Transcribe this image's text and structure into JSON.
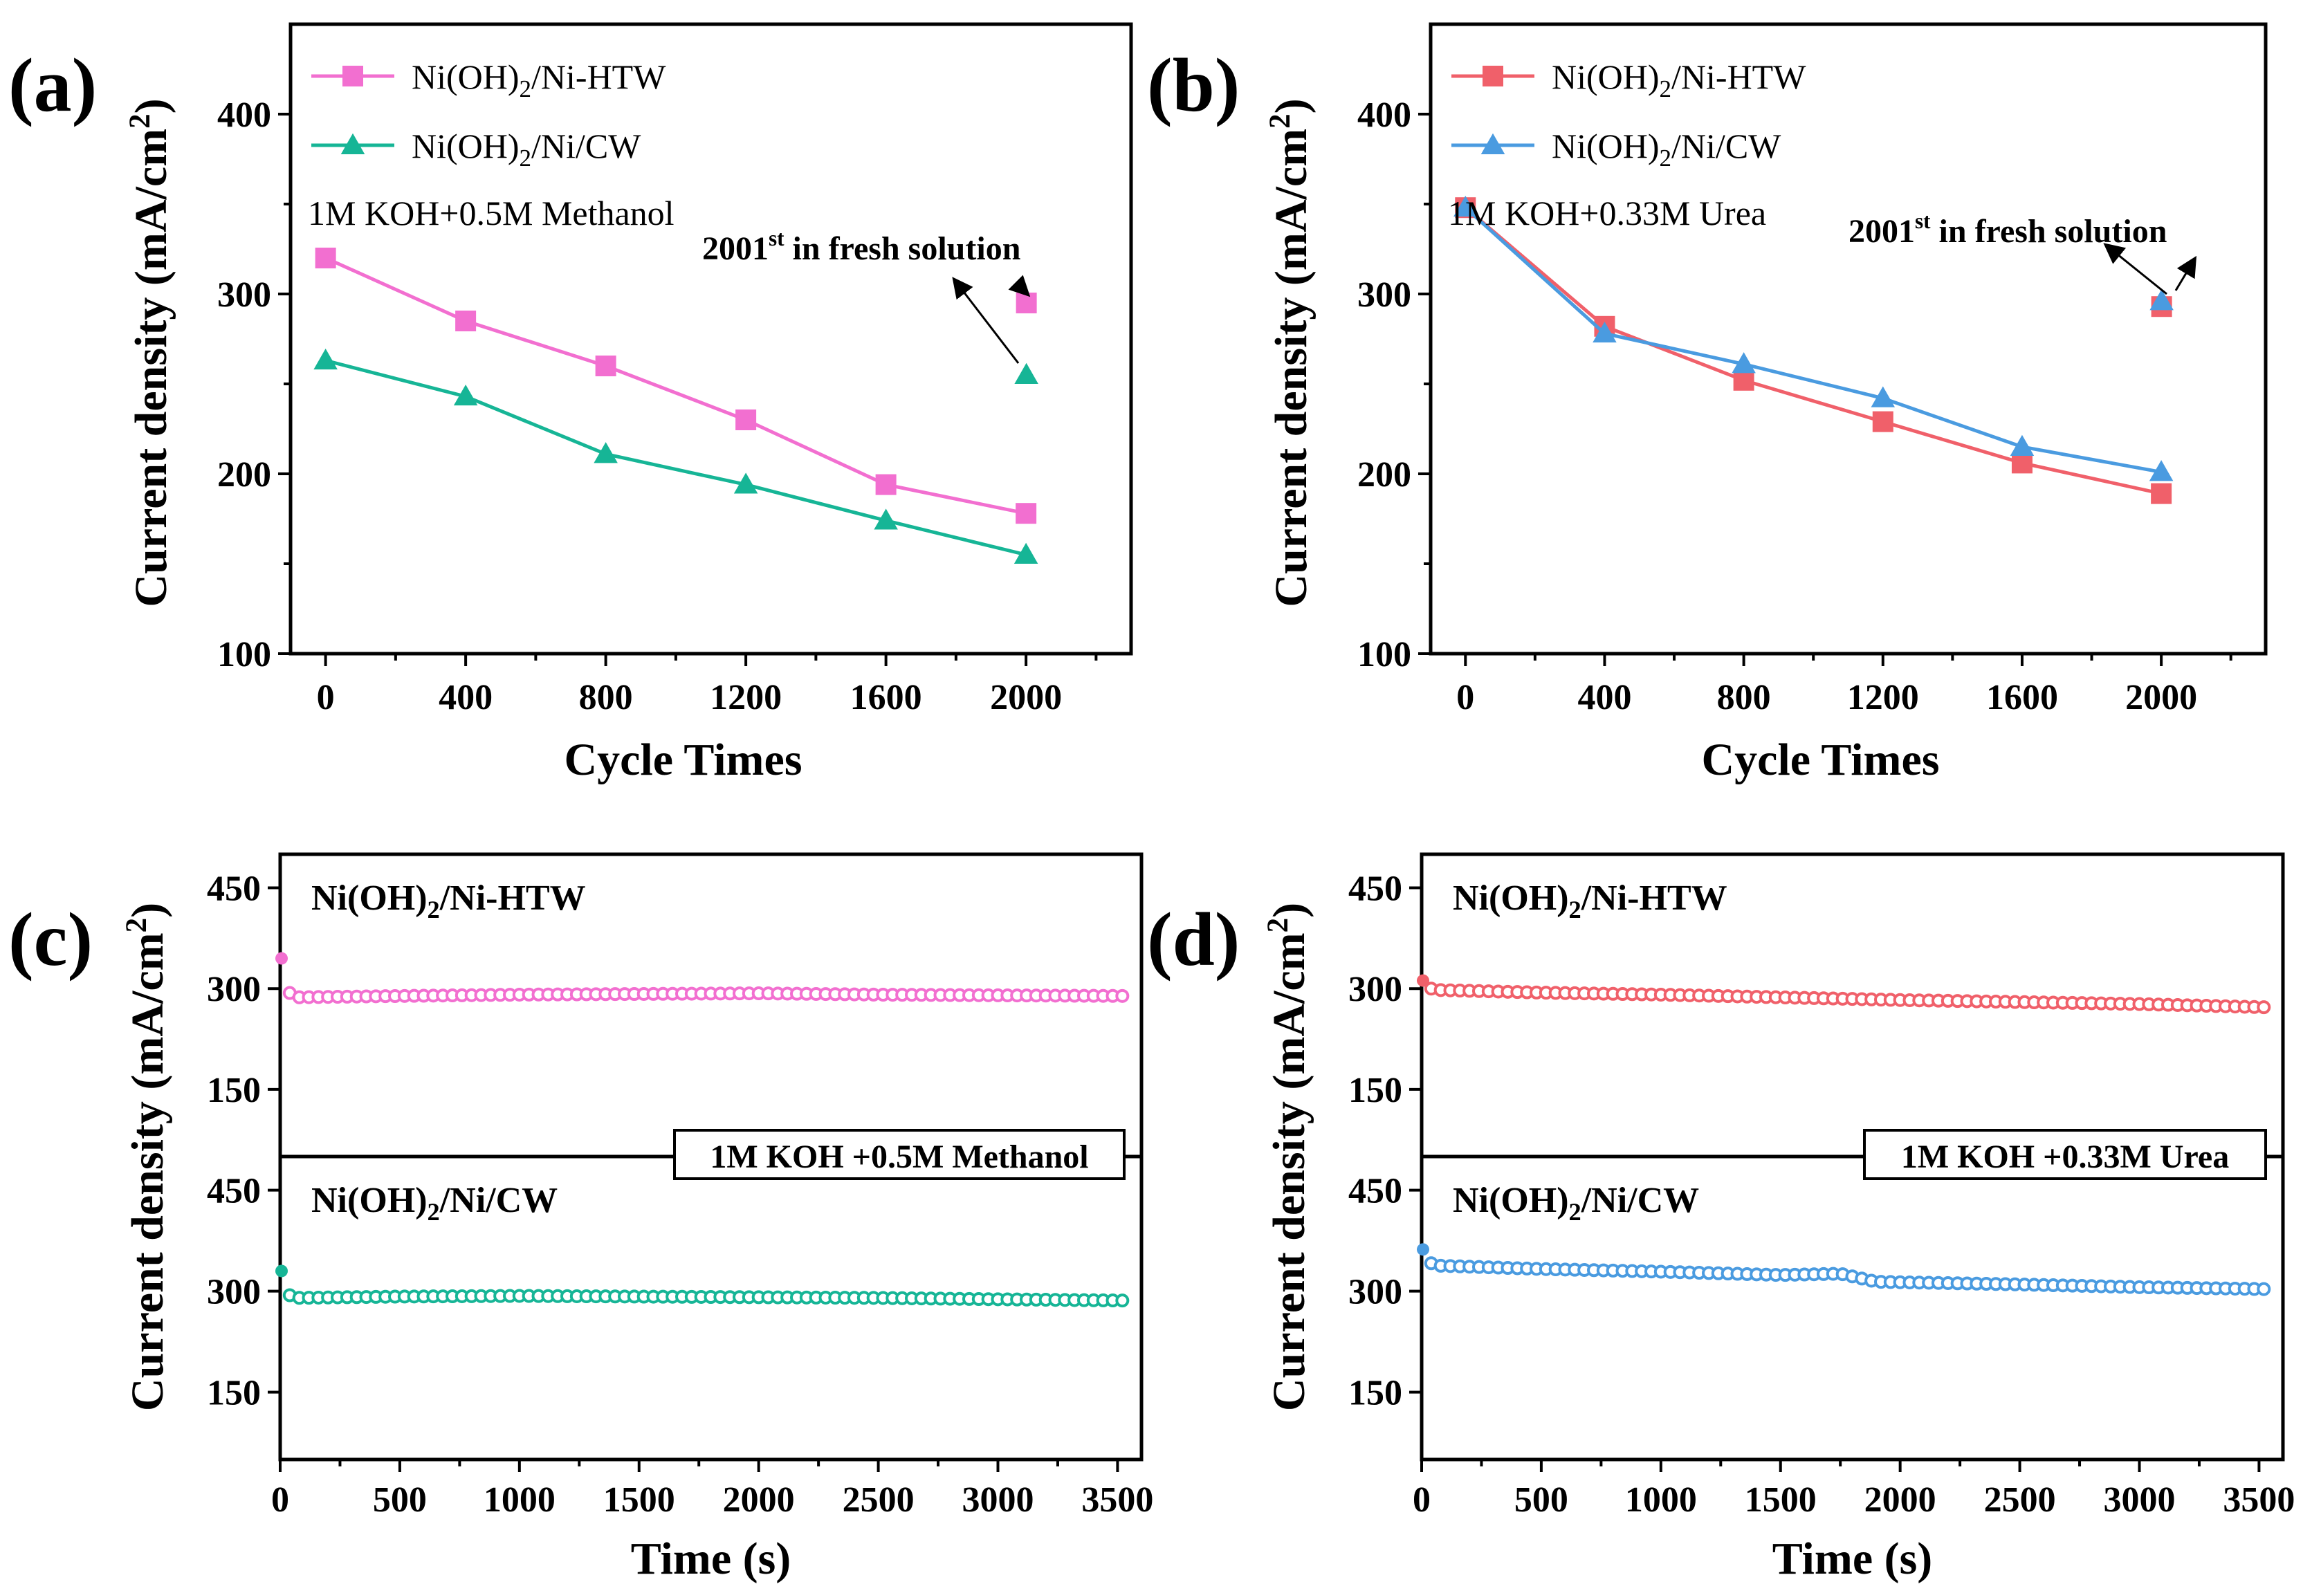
{
  "colors": {
    "htw_a": "#f26fd0",
    "cw_a": "#16b596",
    "htw_b": "#f0606a",
    "cw_b": "#4a9be0"
  },
  "chart_data": [
    {
      "panel": "(a)",
      "type": "line",
      "xlabel": "Cycle Times",
      "ylabel": "Current density (mA/cm²)",
      "xlim": [
        -100,
        2300
      ],
      "ylim": [
        100,
        450
      ],
      "xticks": [
        "0",
        "400",
        "800",
        "1200",
        "1600",
        "2000"
      ],
      "xtick_values": [
        0,
        400,
        800,
        1200,
        1600,
        2000
      ],
      "yticks": [
        "100",
        "200",
        "300",
        "400"
      ],
      "ytick_values": [
        100,
        200,
        300,
        400
      ],
      "condition": "1M KOH+0.5M Methanol",
      "annotation": {
        "text": "2001",
        "sup": "st",
        "rest": " in fresh solution"
      },
      "series": [
        {
          "name": "Ni(OH)2/Ni-HTW",
          "marker": "square",
          "color_key": "htw_a",
          "x": [
            0,
            400,
            800,
            1200,
            1600,
            2000
          ],
          "values": [
            320,
            285,
            260,
            230,
            194,
            178
          ],
          "fresh": {
            "x": 2001,
            "value": 295
          }
        },
        {
          "name": "Ni(OH)2/Ni/CW",
          "marker": "triangle",
          "color_key": "cw_a",
          "x": [
            0,
            400,
            800,
            1200,
            1600,
            2000
          ],
          "values": [
            263,
            243,
            211,
            194,
            174,
            155
          ],
          "fresh": {
            "x": 2001,
            "value": 255
          }
        }
      ]
    },
    {
      "panel": "(b)",
      "type": "line",
      "xlabel": "Cycle Times",
      "ylabel": "Current density (mA/cm²)",
      "xlim": [
        -100,
        2300
      ],
      "ylim": [
        100,
        450
      ],
      "xticks": [
        "0",
        "400",
        "800",
        "1200",
        "1600",
        "2000"
      ],
      "xtick_values": [
        0,
        400,
        800,
        1200,
        1600,
        2000
      ],
      "yticks": [
        "100",
        "200",
        "300",
        "400"
      ],
      "ytick_values": [
        100,
        200,
        300,
        400
      ],
      "condition": "1M KOH+0.33M Urea",
      "annotation": {
        "text": "2001",
        "sup": "st",
        "rest": " in fresh solution"
      },
      "series": [
        {
          "name": "Ni(OH)2/Ni-HTW",
          "marker": "square",
          "color_key": "htw_b",
          "x": [
            0,
            400,
            800,
            1200,
            1600,
            2000
          ],
          "values": [
            348,
            282,
            252,
            229,
            206,
            189
          ],
          "fresh": {
            "x": 2001,
            "value": 293
          }
        },
        {
          "name": "Ni(OH)2/Ni/CW",
          "marker": "triangle",
          "color_key": "cw_b",
          "x": [
            0,
            400,
            800,
            1200,
            1600,
            2000
          ],
          "values": [
            348,
            278,
            261,
            242,
            215,
            201
          ],
          "fresh": {
            "x": 2001,
            "value": 296
          }
        }
      ]
    },
    {
      "panel": "(c)",
      "type": "scatter",
      "xlabel": "Time (s)",
      "ylabel": "Current density (mA/cm²)",
      "xlim": [
        0,
        3600
      ],
      "xticks": [
        "0",
        "500",
        "1000",
        "1500",
        "2000",
        "2500",
        "3000",
        "3500"
      ],
      "xtick_values": [
        0,
        500,
        1000,
        1500,
        2000,
        2500,
        3000,
        3500
      ],
      "ylim": [
        50,
        500
      ],
      "yticks": [
        "150",
        "300",
        "450"
      ],
      "ytick_values": [
        150,
        300,
        450
      ],
      "condition_box": "1M KOH +0.5M Methanol",
      "subplots": [
        {
          "title": "Ni(OH)2/Ni-HTW",
          "color_key": "htw_a",
          "x": [
            0,
            20,
            60,
            500,
            1000,
            1500,
            2000,
            2500,
            3000,
            3550
          ],
          "values": [
            345,
            300,
            287,
            289,
            291,
            292,
            293,
            291,
            290,
            289
          ]
        },
        {
          "title": "Ni(OH)2/Ni/CW",
          "color_key": "cw_a",
          "x": [
            0,
            20,
            60,
            500,
            1000,
            1500,
            2000,
            2500,
            3000,
            3550
          ],
          "values": [
            330,
            298,
            290,
            292,
            293,
            292,
            291,
            290,
            288,
            286
          ]
        }
      ]
    },
    {
      "panel": "(d)",
      "type": "scatter",
      "xlabel": "Time (s)",
      "ylabel": "Current density (mA/cm²)",
      "xlim": [
        0,
        3600
      ],
      "xticks": [
        "0",
        "500",
        "1000",
        "1500",
        "2000",
        "2500",
        "3000",
        "3500"
      ],
      "xtick_values": [
        0,
        500,
        1000,
        1500,
        2000,
        2500,
        3000,
        3500
      ],
      "ylim": [
        50,
        500
      ],
      "yticks": [
        "150",
        "300",
        "450"
      ],
      "ytick_values": [
        150,
        300,
        450
      ],
      "condition_box": "1M KOH +0.33M Urea",
      "subplots": [
        {
          "title": "Ni(OH)2/Ni-HTW",
          "color_key": "htw_b",
          "x": [
            0,
            20,
            60,
            500,
            1000,
            1500,
            2000,
            2500,
            3000,
            3550
          ],
          "values": [
            312,
            302,
            298,
            294,
            291,
            287,
            283,
            280,
            277,
            272
          ]
        },
        {
          "title": "Ni(OH)2/Ni/CW",
          "color_key": "cw_b",
          "x": [
            0,
            20,
            60,
            500,
            1000,
            1500,
            1750,
            1900,
            2500,
            3000,
            3550
          ],
          "values": [
            362,
            345,
            338,
            333,
            329,
            324,
            326,
            314,
            310,
            306,
            303
          ]
        }
      ]
    }
  ]
}
